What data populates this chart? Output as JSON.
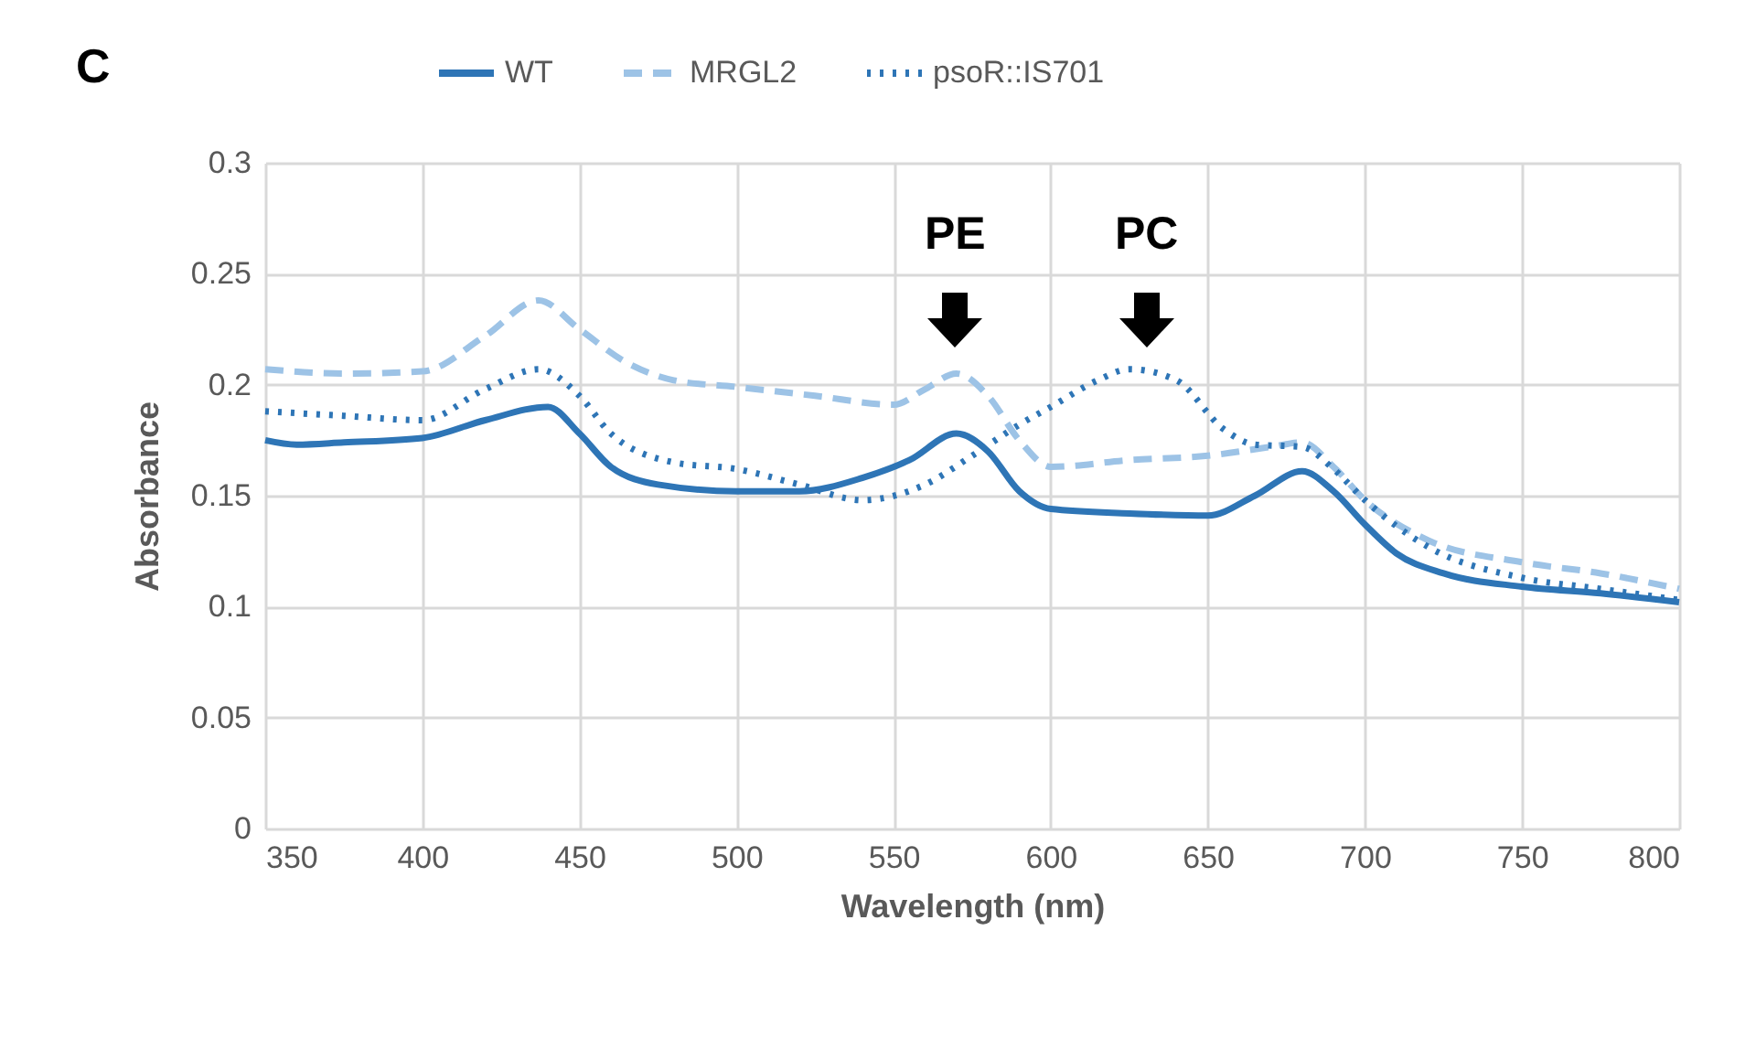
{
  "chart_data": {
    "type": "line",
    "xlabel": "Wavelength (nm)",
    "ylabel": "Absorbance",
    "xlim": [
      350,
      800
    ],
    "xticks": [
      350,
      400,
      450,
      500,
      550,
      600,
      650,
      700,
      750,
      800
    ],
    "ylim": [
      0,
      0.3
    ],
    "yticks": [
      0,
      0.05,
      0.1,
      0.15,
      0.2,
      0.25,
      0.3
    ],
    "grid": true,
    "legend": "top",
    "marker": "none",
    "annotations": [
      "C",
      "PE",
      "PC"
    ],
    "series": [
      {
        "name": "WT",
        "color": "#2e75b6",
        "line_style": "solid",
        "x": [
          350,
          360,
          375,
          400,
          420,
          440,
          450,
          460,
          475,
          500,
          520,
          540,
          555,
          570,
          580,
          590,
          600,
          625,
          650,
          665,
          680,
          690,
          700,
          710,
          725,
          750,
          775,
          800
        ],
        "values": [
          0.175,
          0.173,
          0.174,
          0.176,
          0.184,
          0.19,
          0.178,
          0.163,
          0.155,
          0.152,
          0.152,
          0.158,
          0.166,
          0.178,
          0.17,
          0.152,
          0.144,
          0.142,
          0.141,
          0.15,
          0.161,
          0.152,
          0.137,
          0.124,
          0.115,
          0.109,
          0.106,
          0.102
        ]
      },
      {
        "name": "MRGL2",
        "color": "#9dc3e6",
        "line_style": "dashed",
        "x": [
          350,
          375,
          400,
          420,
          437,
          450,
          465,
          480,
          500,
          525,
          550,
          560,
          570,
          580,
          590,
          600,
          625,
          650,
          670,
          680,
          690,
          700,
          720,
          750,
          775,
          800
        ],
        "values": [
          0.207,
          0.205,
          0.206,
          0.222,
          0.238,
          0.225,
          0.21,
          0.202,
          0.199,
          0.195,
          0.191,
          0.198,
          0.205,
          0.195,
          0.175,
          0.163,
          0.166,
          0.168,
          0.172,
          0.174,
          0.163,
          0.148,
          0.13,
          0.12,
          0.115,
          0.108
        ]
      },
      {
        "name": "psoR::IS701",
        "color": "#2e75b6",
        "line_style": "dotted",
        "x": [
          350,
          375,
          400,
          420,
          437,
          450,
          460,
          480,
          500,
          520,
          540,
          560,
          575,
          590,
          600,
          615,
          625,
          640,
          655,
          665,
          680,
          690,
          700,
          720,
          750,
          775,
          800
        ],
        "values": [
          0.188,
          0.186,
          0.184,
          0.198,
          0.207,
          0.195,
          0.178,
          0.165,
          0.162,
          0.155,
          0.148,
          0.155,
          0.168,
          0.182,
          0.19,
          0.202,
          0.207,
          0.202,
          0.18,
          0.173,
          0.172,
          0.162,
          0.148,
          0.127,
          0.113,
          0.108,
          0.103
        ]
      }
    ]
  }
}
